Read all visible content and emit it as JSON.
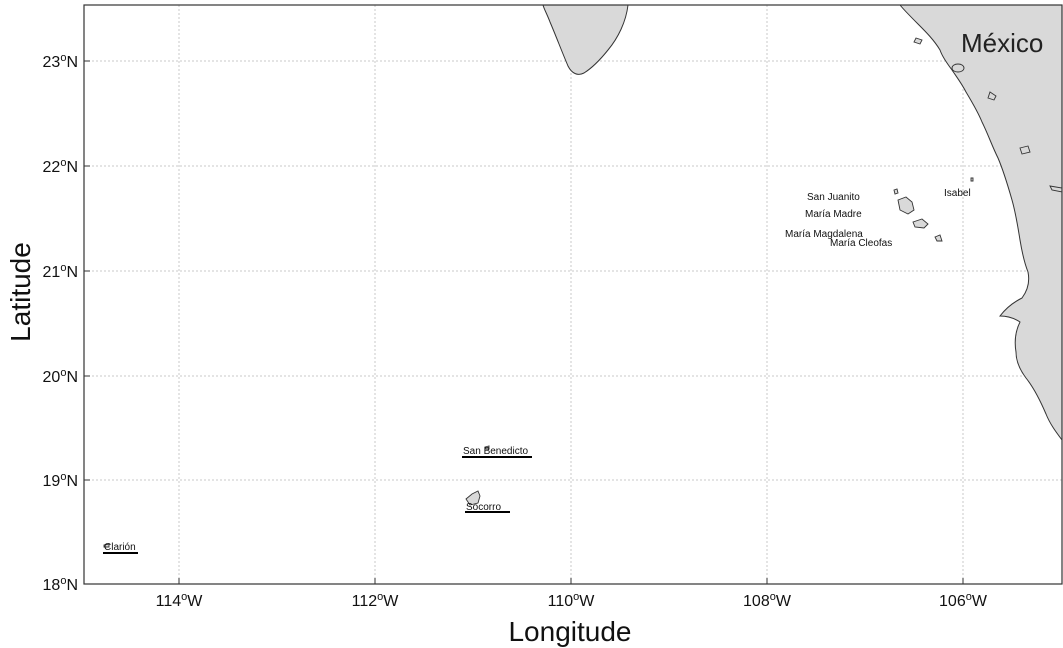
{
  "map": {
    "x_ticks": [
      {
        "id": "114w",
        "pre": "114",
        "sup": "o",
        "post": "W"
      },
      {
        "id": "112w",
        "pre": "112",
        "sup": "o",
        "post": "W"
      },
      {
        "id": "110w",
        "pre": "110",
        "sup": "o",
        "post": "W"
      },
      {
        "id": "108w",
        "pre": "108",
        "sup": "o",
        "post": "W"
      },
      {
        "id": "106w",
        "pre": "106",
        "sup": "o",
        "post": "W"
      }
    ],
    "y_ticks": [
      {
        "id": "23n",
        "pre": "23",
        "sup": "o",
        "post": "N"
      },
      {
        "id": "22n",
        "pre": "22",
        "sup": "o",
        "post": "N"
      },
      {
        "id": "21n",
        "pre": "21",
        "sup": "o",
        "post": "N"
      },
      {
        "id": "20n",
        "pre": "20",
        "sup": "o",
        "post": "N"
      },
      {
        "id": "19n",
        "pre": "19",
        "sup": "o",
        "post": "N"
      },
      {
        "id": "18n",
        "pre": "18",
        "sup": "o",
        "post": "N"
      }
    ],
    "x_label": "Longitude",
    "y_label": "Latitude",
    "country_label": "México",
    "places": {
      "san_juanito": "San Juanito",
      "isabel": "Isabel",
      "maria_madre": "María Madre",
      "maria_magdalena": "María Magdalena",
      "maria_cleofas": "María Cleofas",
      "san_benedicto": "San Benedicto",
      "socorro": "Socorro",
      "clarion": "Clarión"
    },
    "colors": {
      "land": "#d9d9d9",
      "coast": "#333333",
      "grid": "#c8c8c8",
      "underline": "#000000"
    }
  }
}
